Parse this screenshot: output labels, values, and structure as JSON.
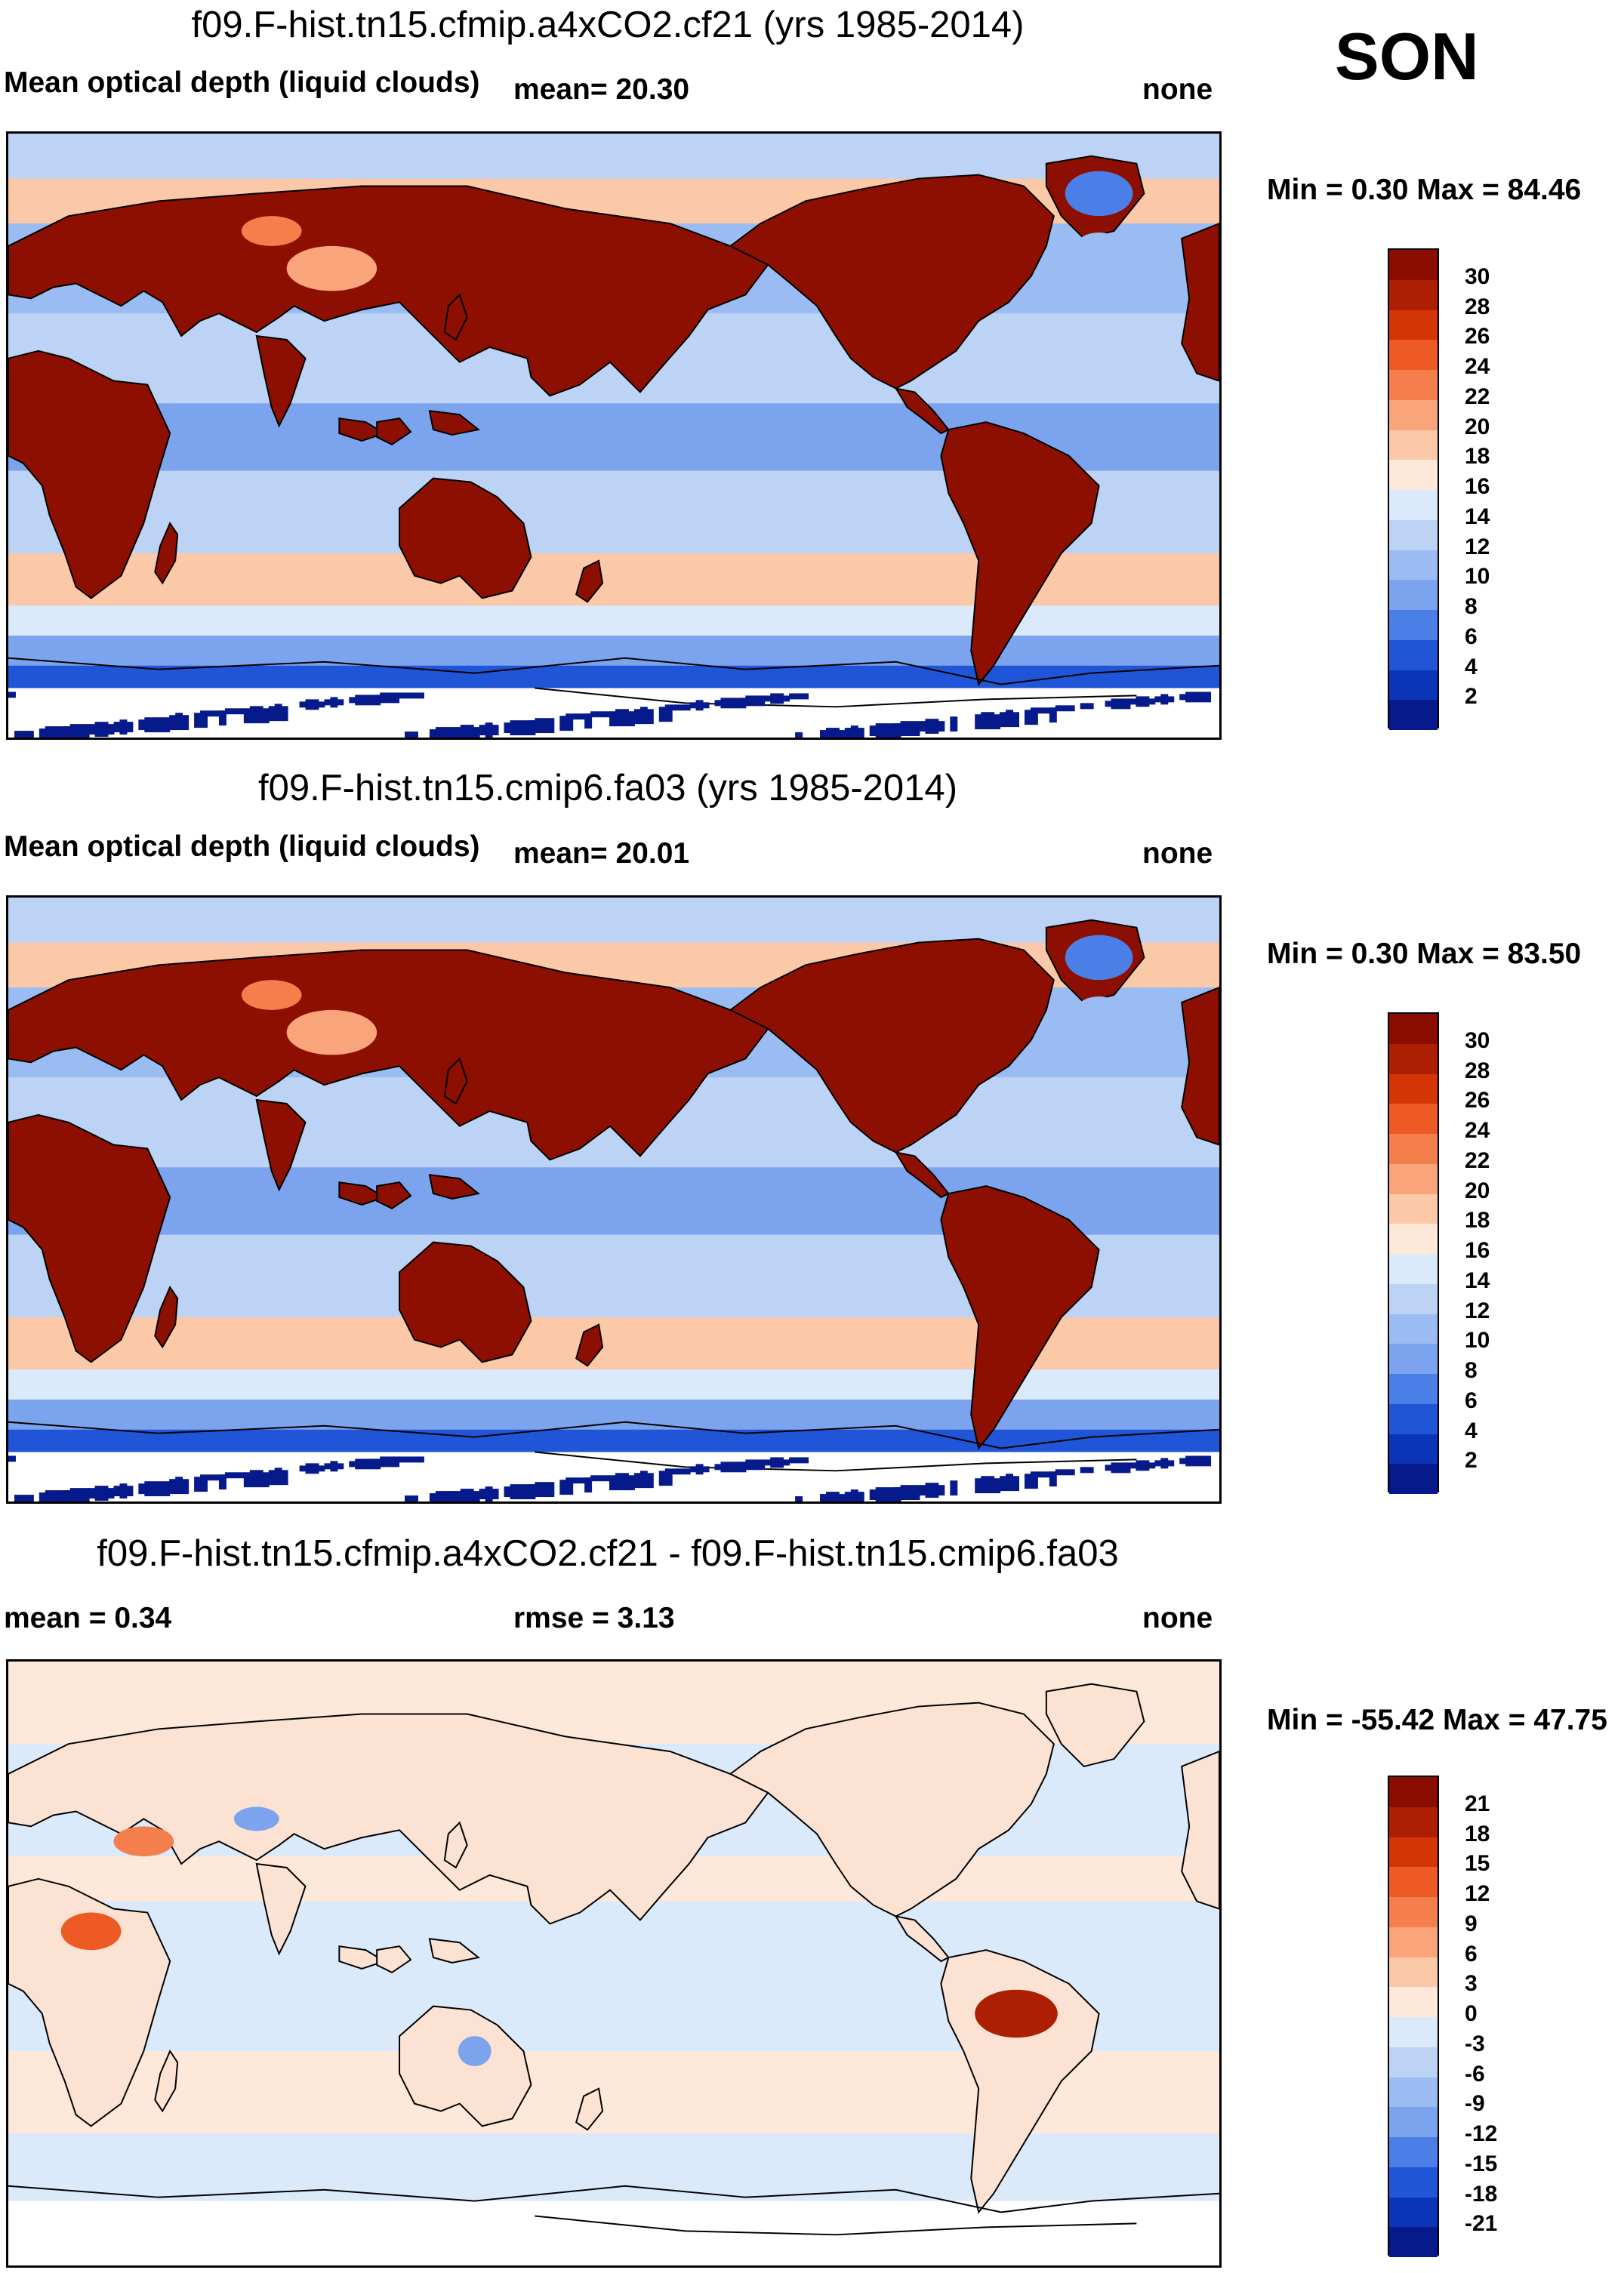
{
  "season": "SON",
  "panels": [
    {
      "title": "f09.F-hist.tn15.cfmip.a4xCO2.cf21 (yrs 1985-2014)",
      "left_label": "Mean optical depth (liquid clouds)",
      "center_label": "mean=  20.30",
      "right_label": "none",
      "minmax": "Min =   0.30 Max =  84.46",
      "levels": [
        "30",
        "28",
        "26",
        "24",
        "22",
        "20",
        "18",
        "16",
        "14",
        "12",
        "10",
        "8",
        "6",
        "4",
        "2"
      ],
      "colors": [
        "#8b0d00",
        "#ad1f02",
        "#d43506",
        "#ee5a24",
        "#f57f4c",
        "#f9a47a",
        "#fcc9a8",
        "#fde8da",
        "#dbeafb",
        "#bcd3f6",
        "#9bbcf2",
        "#7ba3ee",
        "#4c7ee8",
        "#2055d8",
        "#0b34b8",
        "#061a8c"
      ],
      "map": {
        "ocean": "#b7cff4",
        "land": "#8d0f02",
        "sea_ice": "#ffffff",
        "south_band": "#0e2fa8"
      }
    },
    {
      "title": "f09.F-hist.tn15.cmip6.fa03 (yrs 1985-2014)",
      "left_label": "Mean optical depth (liquid clouds)",
      "center_label": "mean=  20.01",
      "right_label": "none",
      "minmax": "Min =   0.30 Max =  83.50",
      "levels": [
        "30",
        "28",
        "26",
        "24",
        "22",
        "20",
        "18",
        "16",
        "14",
        "12",
        "10",
        "8",
        "6",
        "4",
        "2"
      ],
      "colors": [
        "#8b0d00",
        "#ad1f02",
        "#d43506",
        "#ee5a24",
        "#f57f4c",
        "#f9a47a",
        "#fcc9a8",
        "#fde8da",
        "#dbeafb",
        "#bcd3f6",
        "#9bbcf2",
        "#7ba3ee",
        "#4c7ee8",
        "#2055d8",
        "#0b34b8",
        "#061a8c"
      ],
      "map": {
        "ocean": "#b7cff4",
        "land": "#8d0f02",
        "sea_ice": "#ffffff",
        "south_band": "#0e2fa8"
      }
    },
    {
      "title": "f09.F-hist.tn15.cfmip.a4xCO2.cf21 - f09.F-hist.tn15.cmip6.fa03",
      "left_label": "mean =   0.34",
      "center_label": "rmse =   3.13",
      "right_label": "none",
      "minmax": "Min = -55.42 Max =  47.75",
      "levels": [
        "21",
        "18",
        "15",
        "12",
        "9",
        "6",
        "3",
        "0",
        "-3",
        "-6",
        "-9",
        "-12",
        "-15",
        "-18",
        "-21"
      ],
      "colors": [
        "#8b0d00",
        "#ad1f02",
        "#d43506",
        "#ee5a24",
        "#f57f4c",
        "#f9a47a",
        "#fcc9a8",
        "#fde8da",
        "#dbeafb",
        "#bcd3f6",
        "#9bbcf2",
        "#7ba3ee",
        "#4c7ee8",
        "#2055d8",
        "#0b34b8",
        "#061a8c"
      ],
      "map": {
        "ocean": "#e9eefb",
        "land": "#fbe2d3",
        "sea_ice": "#ffffff",
        "south_band": "#f4f6fd"
      }
    }
  ]
}
